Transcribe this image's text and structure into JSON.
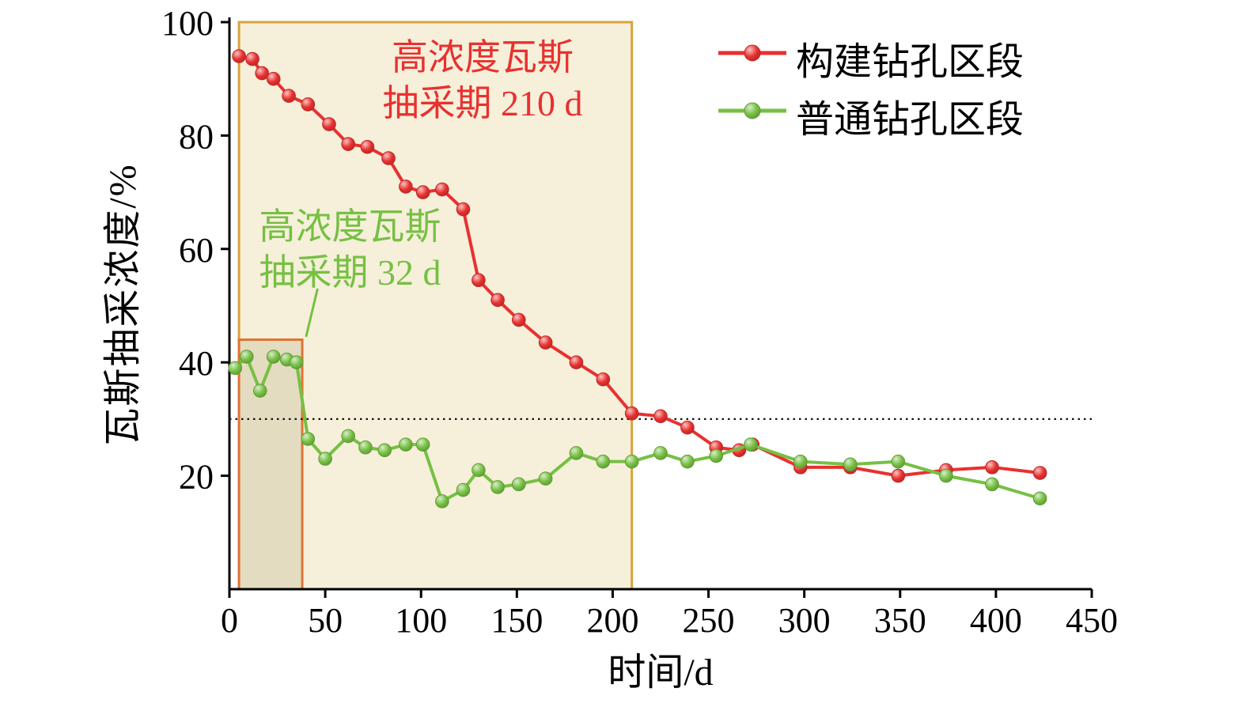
{
  "chart_data": {
    "type": "line",
    "title": "",
    "xlabel": "时间/d",
    "ylabel": "瓦斯抽采浓度/%",
    "xlim": [
      0,
      450
    ],
    "ylim": [
      0,
      100
    ],
    "x_ticks": [
      0,
      50,
      100,
      150,
      200,
      250,
      300,
      350,
      400,
      450
    ],
    "y_ticks": [
      20,
      40,
      60,
      80,
      100
    ],
    "grid": "off",
    "legend_position": "top-right",
    "threshold_line": {
      "y": 30,
      "style": "dotted",
      "color": "#111111"
    },
    "regions": [
      {
        "name": "high-concentration-period-constructed",
        "x0": 5,
        "x1": 210,
        "y0": 0,
        "y1": 100,
        "fill": "#f6efda",
        "stroke": "#d8a33c"
      },
      {
        "name": "high-concentration-period-ordinary",
        "x0": 5,
        "x1": 38,
        "y0": 0,
        "y1": 44,
        "fill": "#e4dcc1",
        "stroke": "#dd7433"
      }
    ],
    "series": [
      {
        "name": "构建钻孔区段",
        "color": "#e8312f",
        "points": [
          [
            5,
            94
          ],
          [
            12,
            93.5
          ],
          [
            17,
            91
          ],
          [
            23,
            90
          ],
          [
            31,
            87
          ],
          [
            41,
            85.5
          ],
          [
            52,
            82
          ],
          [
            62,
            78.5
          ],
          [
            72,
            78
          ],
          [
            83,
            76
          ],
          [
            92,
            71
          ],
          [
            101,
            70
          ],
          [
            111,
            70.5
          ],
          [
            122,
            67
          ],
          [
            130,
            54.5
          ],
          [
            140,
            51
          ],
          [
            151,
            47.5
          ],
          [
            165,
            43.5
          ],
          [
            181,
            40
          ],
          [
            195,
            37
          ],
          [
            210,
            31
          ],
          [
            225,
            30.5
          ],
          [
            239,
            28.5
          ],
          [
            254,
            25
          ],
          [
            266,
            24.5
          ],
          [
            273,
            25.5
          ],
          [
            298,
            21.5
          ],
          [
            324,
            21.5
          ],
          [
            349,
            20
          ],
          [
            374,
            21
          ],
          [
            398,
            21.5
          ],
          [
            423,
            20.5
          ]
        ]
      },
      {
        "name": "普通钻孔区段",
        "color": "#76c043",
        "points": [
          [
            3,
            39
          ],
          [
            9,
            41
          ],
          [
            16,
            35
          ],
          [
            23,
            41
          ],
          [
            30,
            40.5
          ],
          [
            35,
            40
          ],
          [
            41,
            26.5
          ],
          [
            50,
            23
          ],
          [
            62,
            27
          ],
          [
            71,
            25
          ],
          [
            81,
            24.5
          ],
          [
            92,
            25.5
          ],
          [
            101,
            25.5
          ],
          [
            111,
            15.5
          ],
          [
            122,
            17.5
          ],
          [
            130,
            21
          ],
          [
            140,
            18
          ],
          [
            151,
            18.5
          ],
          [
            165,
            19.5
          ],
          [
            181,
            24
          ],
          [
            195,
            22.5
          ],
          [
            210,
            22.5
          ],
          [
            225,
            24
          ],
          [
            239,
            22.5
          ],
          [
            254,
            23.5
          ],
          [
            272,
            25.5
          ],
          [
            298,
            22.5
          ],
          [
            324,
            22
          ],
          [
            349,
            22.5
          ],
          [
            374,
            20
          ],
          [
            398,
            18.5
          ],
          [
            423,
            16
          ]
        ]
      }
    ],
    "annotations": [
      {
        "line1": "高浓度瓦斯",
        "line2": "抽采期 210 d",
        "color": "#e8312f"
      },
      {
        "line1": "高浓度瓦斯",
        "line2": "抽采期 32 d",
        "color": "#76c043",
        "pointer": {
          "from": [
            46,
            53
          ],
          "to": [
            40,
            44.5
          ]
        }
      }
    ]
  }
}
